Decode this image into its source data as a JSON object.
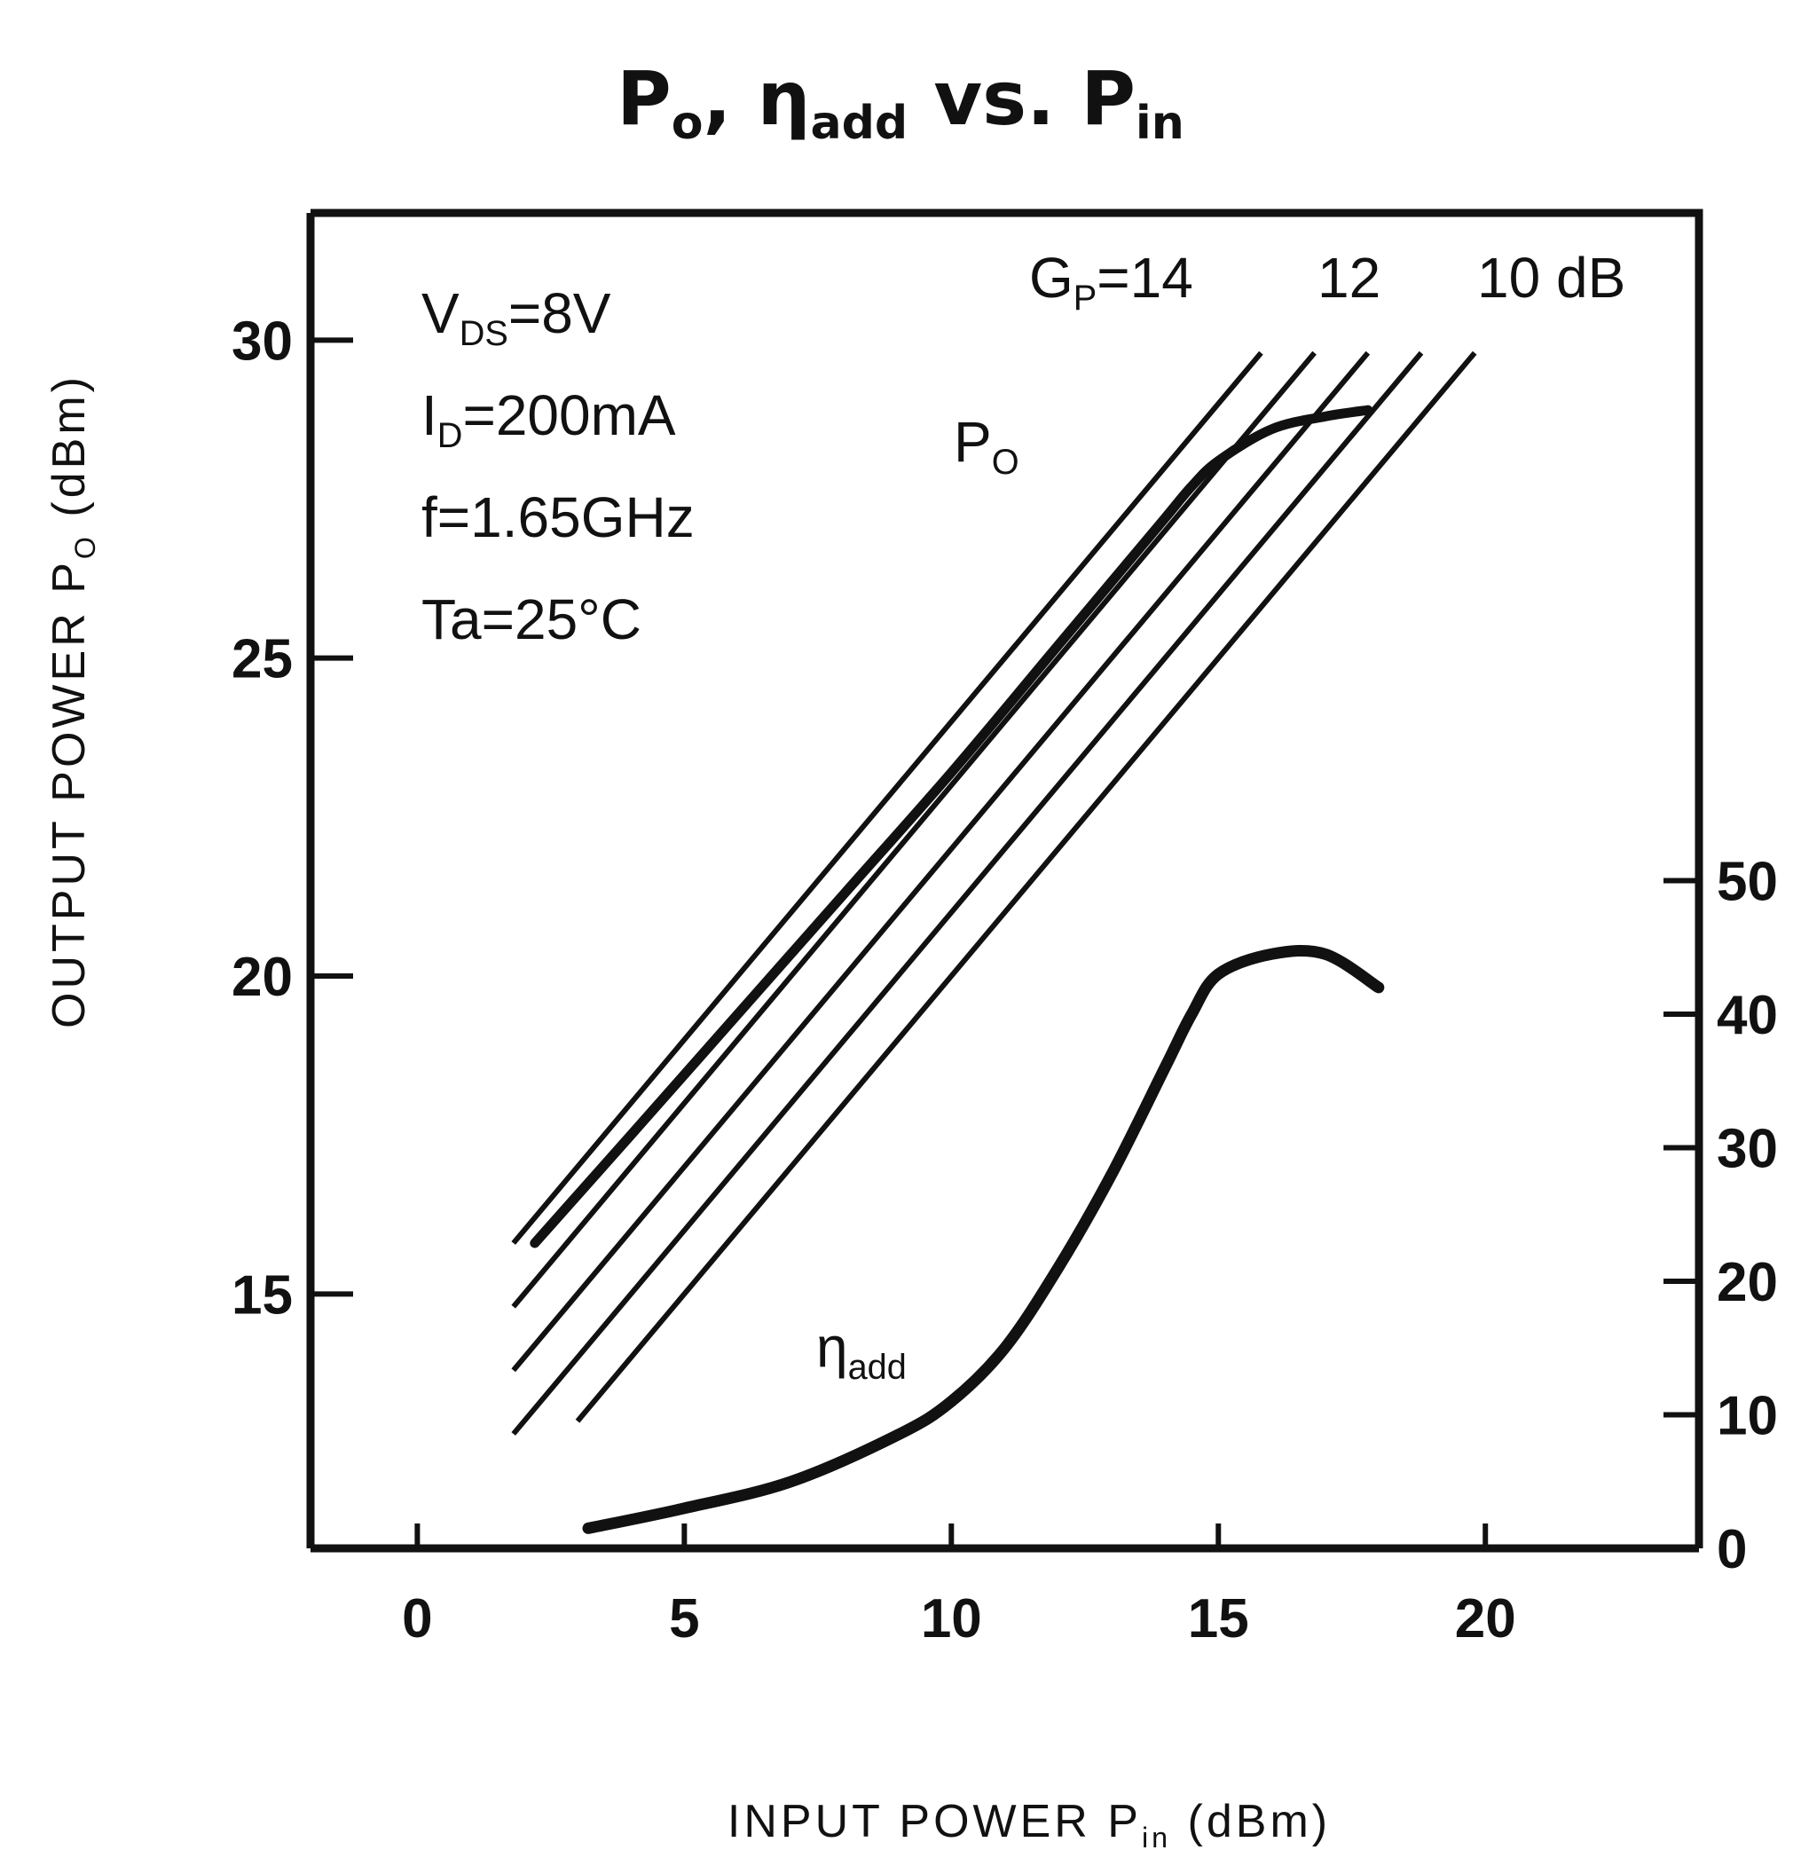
{
  "chart_data": {
    "type": "line",
    "title": {
      "p1": "P",
      "p1_sub": "o",
      "sep": ", ",
      "eta": "η",
      "eta_sub": "add",
      "vs": " vs. ",
      "p2": "P",
      "p2_sub": "in"
    },
    "xlabel": "INPUT POWER P",
    "xlabel_sub": "in",
    "xlabel_unit": " (dBm)",
    "ylabel": "OUTPUT POWER P",
    "ylabel_sub": "O",
    "ylabel_unit": " (dBm)",
    "xlim": [
      -2,
      24
    ],
    "ylim": [
      11,
      32
    ],
    "y2lim": [
      0,
      100
    ],
    "x_ticks": [
      0,
      5,
      10,
      15,
      20
    ],
    "y_ticks": [
      15,
      20,
      25,
      30
    ],
    "y2_ticks": [
      0,
      10,
      20,
      30,
      40,
      50
    ],
    "conditions": [
      {
        "main": "V",
        "sub": "DS",
        "rest": "=8V"
      },
      {
        "main": "I",
        "sub": "D",
        "rest": "=200mA"
      },
      {
        "main": "f=1.65GHz",
        "sub": "",
        "rest": ""
      },
      {
        "main": "Ta=25°C",
        "sub": "",
        "rest": ""
      }
    ],
    "gain_label": {
      "main": "G",
      "sub": "P",
      "rest": "=14",
      "mid": "12",
      "last": "10 dB"
    },
    "gain_lines": [
      {
        "gain_db": 14,
        "x": [
          1.8,
          15.8
        ]
      },
      {
        "gain_db": 13,
        "x": [
          1.8,
          16.8
        ]
      },
      {
        "gain_db": 12,
        "x": [
          1.8,
          17.8
        ]
      },
      {
        "gain_db": 11,
        "x": [
          1.8,
          18.8
        ]
      },
      {
        "gain_db": 10,
        "x": [
          3.0,
          19.8
        ]
      }
    ],
    "series": [
      {
        "name": "P",
        "name_sub": "O",
        "axis": "left",
        "x": [
          2.2,
          4,
          6,
          8,
          10,
          12,
          13,
          14,
          14.5,
          15,
          16,
          17,
          17.8
        ],
        "y": [
          15.8,
          17.5,
          19.4,
          21.3,
          23.2,
          25.2,
          26.2,
          27.2,
          27.7,
          28.1,
          28.6,
          28.8,
          28.9
        ]
      },
      {
        "name": "η",
        "name_sub": "add",
        "axis": "right",
        "x": [
          3.2,
          5,
          7,
          9,
          10,
          11,
          12,
          13,
          14,
          14.5,
          15,
          16,
          17,
          18
        ],
        "y": [
          1.5,
          3,
          5,
          8.5,
          11,
          15,
          21,
          28,
          36,
          40,
          43,
          44.5,
          44.5,
          42
        ]
      }
    ]
  }
}
